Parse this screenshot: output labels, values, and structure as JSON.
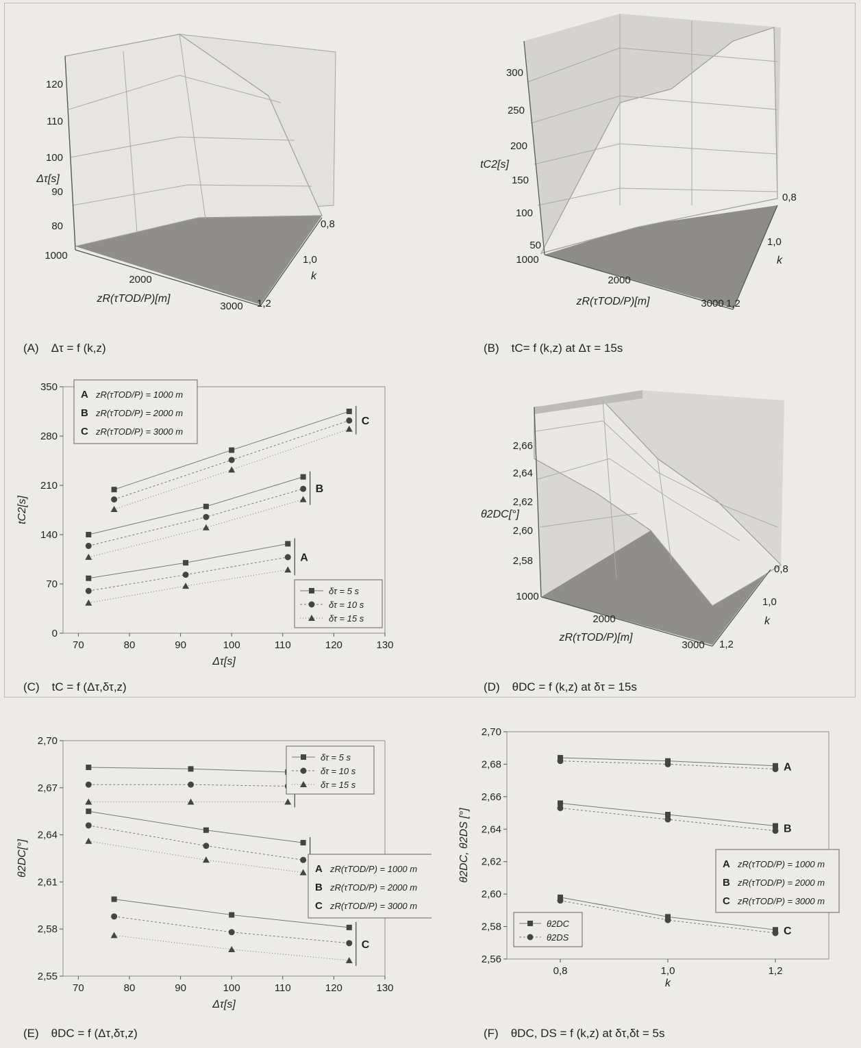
{
  "colors": {
    "background": "#ecebe7",
    "surface_light": "#e7e6e3",
    "surface_mid": "#c9c8c5",
    "floor_dark": "#8f8e8b",
    "axis": "#555555",
    "grid": "#c8c7c3",
    "marker": "#444444"
  },
  "captions": {
    "A": {
      "id": "(A)",
      "text": "Δτ = f (k,z)"
    },
    "B": {
      "id": "(B)",
      "text": "tC= f (k,z) at Δτ = 15s"
    },
    "C": {
      "id": "(C)",
      "text": "tC = f (Δτ,δτ,z)"
    },
    "D": {
      "id": "(D)",
      "text": "θDC = f (k,z) at δτ = 15s"
    },
    "E": {
      "id": "(E)",
      "text": "θDC = f (Δτ,δτ,z)"
    },
    "F": {
      "id": "(F)",
      "text": "θDC, DS = f (k,z) at δτ,δt = 5s"
    }
  },
  "chart_data": [
    {
      "id": "A",
      "type": "surface3d",
      "zlabel": "Δτ[s]",
      "xlabel": "zR(τTOD/P)[m]",
      "ylabel": "k",
      "z_ticks": [
        "80",
        "90",
        "100",
        "110",
        "120"
      ],
      "x_ticks": [
        "1000",
        "2000",
        "3000"
      ],
      "y_ticks": [
        "0,8",
        "1,0",
        "1,2"
      ]
    },
    {
      "id": "B",
      "type": "surface3d",
      "zlabel": "tC2[s]",
      "xlabel": "zR(τTOD/P)[m]",
      "ylabel": "k",
      "z_ticks": [
        "50",
        "100",
        "150",
        "200",
        "250",
        "300"
      ],
      "x_ticks": [
        "1000",
        "2000",
        "3000"
      ],
      "y_ticks": [
        "0,8",
        "1,0",
        "1,2"
      ]
    },
    {
      "id": "C",
      "type": "line",
      "xlabel": "Δτ[s]",
      "ylabel": "tC2[s]",
      "xlim": [
        67,
        130
      ],
      "ylim": [
        0,
        350
      ],
      "x_ticks": [
        70,
        80,
        90,
        100,
        110,
        120,
        130
      ],
      "y_ticks": [
        0,
        70,
        140,
        210,
        280,
        350
      ],
      "marker_legend": [
        "δτ = 5 s",
        "δτ = 10 s",
        "δτ = 15 s"
      ],
      "group_legend": [
        {
          "key": "A",
          "label": "zR(τTOD/P) = 1000 m"
        },
        {
          "key": "B",
          "label": "zR(τTOD/P) = 2000 m"
        },
        {
          "key": "C",
          "label": "zR(τTOD/P) = 3000 m"
        }
      ],
      "series": [
        {
          "group": "A",
          "marker": "square",
          "x": [
            72,
            91,
            111
          ],
          "y": [
            78,
            100,
            127
          ]
        },
        {
          "group": "A",
          "marker": "circle",
          "x": [
            72,
            91,
            111
          ],
          "y": [
            60,
            83,
            108
          ]
        },
        {
          "group": "A",
          "marker": "triangle",
          "x": [
            72,
            91,
            111
          ],
          "y": [
            43,
            67,
            90
          ]
        },
        {
          "group": "B",
          "marker": "square",
          "x": [
            72,
            95,
            114
          ],
          "y": [
            140,
            180,
            222
          ]
        },
        {
          "group": "B",
          "marker": "circle",
          "x": [
            72,
            95,
            114
          ],
          "y": [
            124,
            165,
            205
          ]
        },
        {
          "group": "B",
          "marker": "triangle",
          "x": [
            72,
            95,
            114
          ],
          "y": [
            108,
            150,
            190
          ]
        },
        {
          "group": "C",
          "marker": "square",
          "x": [
            77,
            100,
            123
          ],
          "y": [
            204,
            260,
            315
          ]
        },
        {
          "group": "C",
          "marker": "circle",
          "x": [
            77,
            100,
            123
          ],
          "y": [
            190,
            246,
            302
          ]
        },
        {
          "group": "C",
          "marker": "triangle",
          "x": [
            77,
            100,
            123
          ],
          "y": [
            176,
            232,
            290
          ]
        }
      ]
    },
    {
      "id": "D",
      "type": "surface3d",
      "zlabel": "θ2DC[°]",
      "xlabel": "zR(τTOD/P)[m]",
      "ylabel": "k",
      "z_ticks": [
        "2,58",
        "2,60",
        "2,62",
        "2,64",
        "2,66"
      ],
      "x_ticks": [
        "1000",
        "2000",
        "3000"
      ],
      "y_ticks": [
        "0,8",
        "1,0",
        "1,2"
      ]
    },
    {
      "id": "E",
      "type": "line",
      "xlabel": "Δτ[s]",
      "ylabel": "θ2DC[°]",
      "xlim": [
        67,
        130
      ],
      "ylim": [
        2.55,
        2.7
      ],
      "x_ticks": [
        70,
        80,
        90,
        100,
        110,
        120,
        130
      ],
      "y_ticks": [
        "2,55",
        "2,58",
        "2,61",
        "2,64",
        "2,67",
        "2,70"
      ],
      "y_tick_values": [
        2.55,
        2.58,
        2.61,
        2.64,
        2.67,
        2.7
      ],
      "marker_legend": [
        "δτ = 5 s",
        "δτ = 10 s",
        "δτ = 15 s"
      ],
      "group_legend": [
        {
          "key": "A",
          "label": "zR(τTOD/P) = 1000 m"
        },
        {
          "key": "B",
          "label": "zR(τTOD/P) = 2000 m"
        },
        {
          "key": "C",
          "label": "zR(τTOD/P) = 3000 m"
        }
      ],
      "series": [
        {
          "group": "A",
          "marker": "square",
          "x": [
            72,
            92,
            111
          ],
          "y": [
            2.683,
            2.682,
            2.68
          ]
        },
        {
          "group": "A",
          "marker": "circle",
          "x": [
            72,
            92,
            111
          ],
          "y": [
            2.672,
            2.672,
            2.671
          ]
        },
        {
          "group": "A",
          "marker": "triangle",
          "x": [
            72,
            92,
            111
          ],
          "y": [
            2.661,
            2.661,
            2.661
          ]
        },
        {
          "group": "B",
          "marker": "square",
          "x": [
            72,
            95,
            114
          ],
          "y": [
            2.655,
            2.643,
            2.635
          ]
        },
        {
          "group": "B",
          "marker": "circle",
          "x": [
            72,
            95,
            114
          ],
          "y": [
            2.646,
            2.633,
            2.624
          ]
        },
        {
          "group": "B",
          "marker": "triangle",
          "x": [
            72,
            95,
            114
          ],
          "y": [
            2.636,
            2.624,
            2.616
          ]
        },
        {
          "group": "C",
          "marker": "square",
          "x": [
            77,
            100,
            123
          ],
          "y": [
            2.599,
            2.589,
            2.581
          ]
        },
        {
          "group": "C",
          "marker": "circle",
          "x": [
            77,
            100,
            123
          ],
          "y": [
            2.588,
            2.578,
            2.571
          ]
        },
        {
          "group": "C",
          "marker": "triangle",
          "x": [
            77,
            100,
            123
          ],
          "y": [
            2.576,
            2.567,
            2.56
          ]
        }
      ]
    },
    {
      "id": "F",
      "type": "line",
      "xlabel": "k",
      "ylabel": "θ2DC, θ2DS [°]",
      "x": [
        0.8,
        1.0,
        1.2
      ],
      "xlim": [
        0.8,
        1.2
      ],
      "ylim": [
        2.56,
        2.7
      ],
      "x_ticks": [
        "0,8",
        "1,0",
        "1,2"
      ],
      "y_ticks": [
        "2,56",
        "2,58",
        "2,60",
        "2,62",
        "2,64",
        "2,66",
        "2,68",
        "2,70"
      ],
      "y_tick_values": [
        2.56,
        2.58,
        2.6,
        2.62,
        2.64,
        2.66,
        2.68,
        2.7
      ],
      "marker_legend": [
        "θ2DC",
        "θ2DS"
      ],
      "group_legend": [
        {
          "key": "A",
          "label": "zR(τTOD/P) = 1000 m"
        },
        {
          "key": "B",
          "label": "zR(τTOD/P) = 2000 m"
        },
        {
          "key": "C",
          "label": "zR(τTOD/P) = 3000 m"
        }
      ],
      "series": [
        {
          "group": "A",
          "marker": "square",
          "y": [
            2.684,
            2.682,
            2.679
          ]
        },
        {
          "group": "A",
          "marker": "circle",
          "y": [
            2.682,
            2.68,
            2.677
          ]
        },
        {
          "group": "B",
          "marker": "square",
          "y": [
            2.656,
            2.649,
            2.642
          ]
        },
        {
          "group": "B",
          "marker": "circle",
          "y": [
            2.653,
            2.646,
            2.639
          ]
        },
        {
          "group": "C",
          "marker": "square",
          "y": [
            2.598,
            2.586,
            2.578
          ]
        },
        {
          "group": "C",
          "marker": "circle",
          "y": [
            2.596,
            2.584,
            2.576
          ]
        }
      ]
    }
  ]
}
